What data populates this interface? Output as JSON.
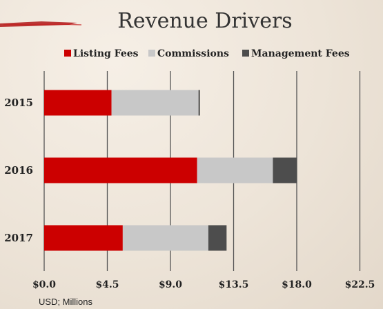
{
  "chart_data": {
    "type": "bar",
    "orientation": "horizontal",
    "stacked": true,
    "title": "Revenue Drivers",
    "categories": [
      "2015",
      "2016",
      "2017"
    ],
    "series": [
      {
        "name": "Listing Fees",
        "values": [
          4.8,
          10.9,
          5.6
        ],
        "color": "#cc0000"
      },
      {
        "name": "Commissions",
        "values": [
          6.2,
          5.4,
          6.1
        ],
        "color": "#c8c8c8"
      },
      {
        "name": "Management Fees",
        "values": [
          0.1,
          1.7,
          1.3
        ],
        "color": "#4d4d4d"
      }
    ],
    "xticks": [
      "$0.0",
      "$4.5",
      "$9.0",
      "$13.5",
      "$18.0",
      "$22.5"
    ],
    "xlim": [
      0,
      22.5
    ],
    "xlabel": "USD; Millions",
    "grid": true,
    "legend_position": "top"
  }
}
